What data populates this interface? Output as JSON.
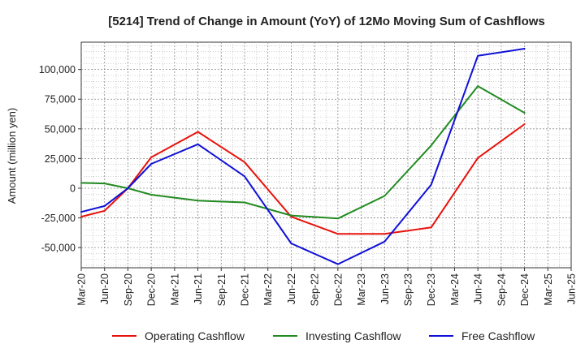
{
  "chart_data": {
    "type": "line",
    "title": "[5214]  Trend of Change in Amount (YoY) of 12Mo Moving Sum of Cashflows",
    "xlabel": "",
    "ylabel": "Amount (million yen)",
    "categories": [
      "Mar-20",
      "Jun-20",
      "Sep-20",
      "Dec-20",
      "Mar-21",
      "Jun-21",
      "Sep-21",
      "Dec-21",
      "Mar-22",
      "Jun-22",
      "Sep-22",
      "Dec-22",
      "Mar-23",
      "Jun-23",
      "Sep-23",
      "Dec-23",
      "Mar-24",
      "Jun-24",
      "Sep-24",
      "Dec-24",
      "Mar-25",
      "Jun-25"
    ],
    "yticks": [
      -50000,
      -25000,
      0,
      25000,
      50000,
      75000,
      100000
    ],
    "ytick_labels": [
      "-50,000",
      "-25,000",
      "0",
      "25,000",
      "50,000",
      "75,000",
      "100,000"
    ],
    "ylim": [
      -67000,
      123000
    ],
    "grid": true,
    "legend_position": "bottom",
    "series": [
      {
        "name": "Operating Cashflow",
        "color": "#e8120c",
        "values": [
          -24000,
          -19000,
          0,
          26000,
          null,
          47500,
          null,
          22000,
          null,
          -24000,
          null,
          -38500,
          null,
          -38500,
          null,
          -33000,
          null,
          25500,
          null,
          54000,
          null,
          null
        ]
      },
      {
        "name": "Investing Cashflow",
        "color": "#228b22",
        "values": [
          4500,
          4000,
          0,
          -5500,
          null,
          -10500,
          null,
          -12000,
          null,
          -23000,
          null,
          -25500,
          null,
          -6500,
          null,
          36000,
          null,
          86000,
          null,
          63500,
          null,
          null
        ]
      },
      {
        "name": "Free Cashflow",
        "color": "#1010d8",
        "values": [
          -20000,
          -15000,
          0,
          20500,
          null,
          37000,
          null,
          10000,
          null,
          -46500,
          null,
          -64000,
          null,
          -45000,
          null,
          3000,
          null,
          111500,
          null,
          117500,
          null,
          null
        ]
      }
    ]
  }
}
